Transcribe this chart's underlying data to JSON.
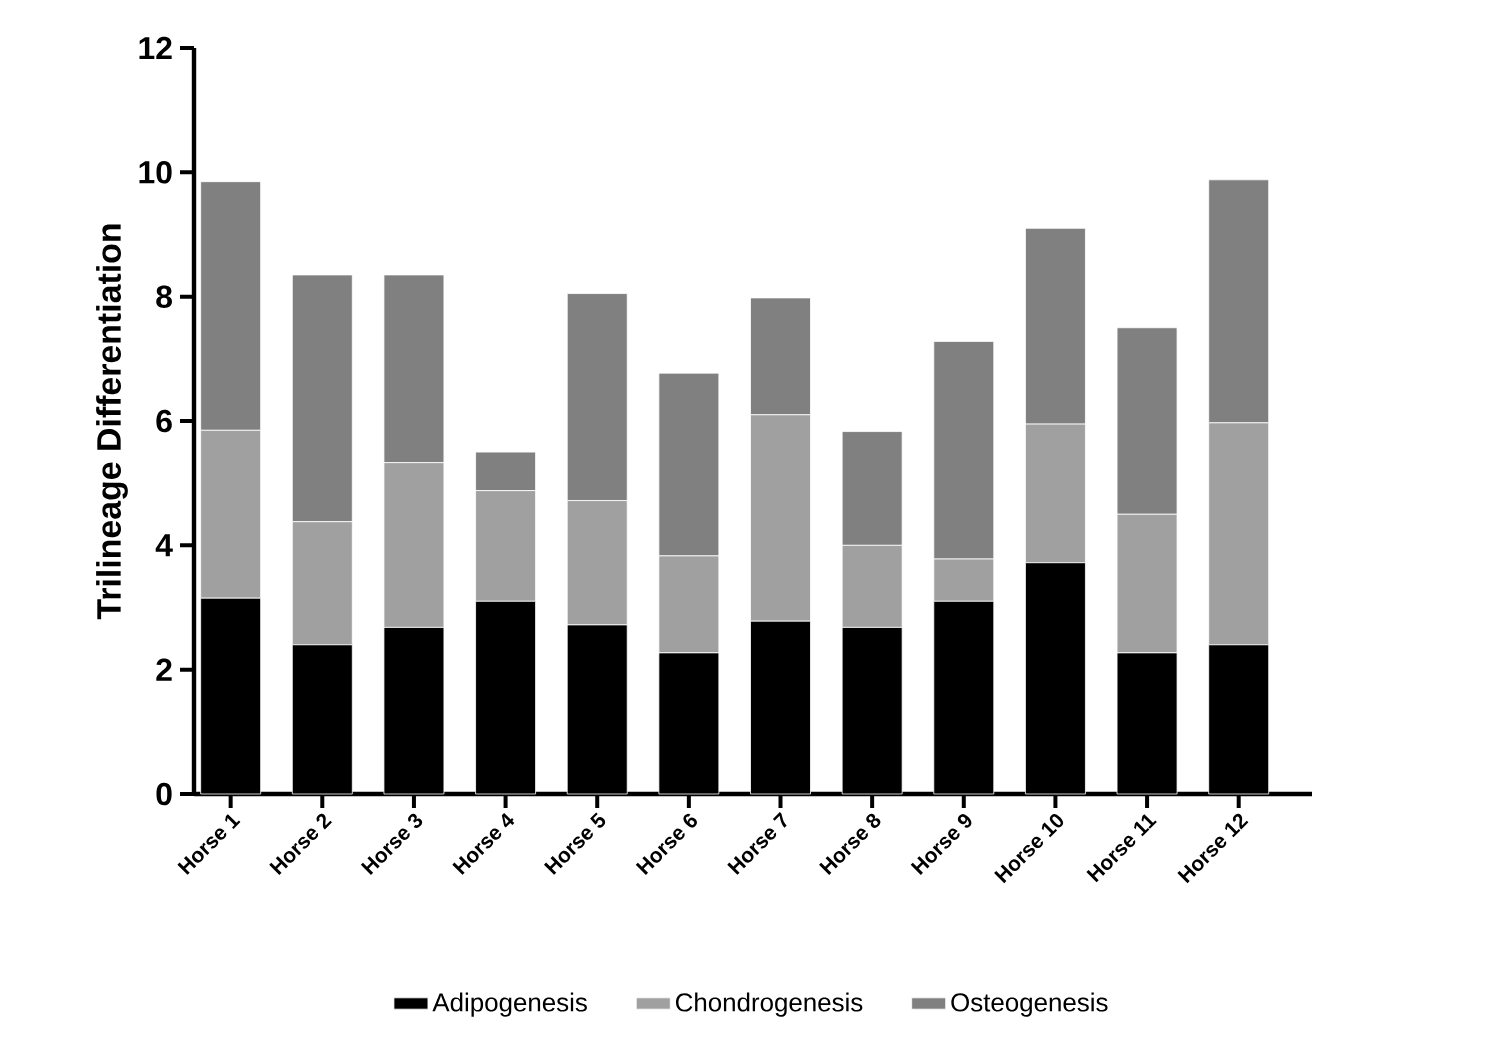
{
  "chart_data": {
    "type": "bar",
    "stacked": true,
    "ylabel": "Trilineage Differentiation",
    "categories": [
      "Horse 1",
      "Horse 2",
      "Horse 3",
      "Horse 4",
      "Horse 5",
      "Horse 6",
      "Horse 7",
      "Horse 8",
      "Horse 9",
      "Horse 10",
      "Horse 11",
      "Horse 12"
    ],
    "series": [
      {
        "name": "Adipogenesis",
        "color": "#000000",
        "values": [
          3.15,
          2.4,
          2.68,
          3.1,
          2.72,
          2.27,
          2.78,
          2.68,
          3.1,
          3.72,
          2.27,
          2.4
        ]
      },
      {
        "name": "Chondrogenesis",
        "color": "#a0a0a0",
        "values": [
          2.7,
          1.98,
          2.65,
          1.78,
          2.0,
          1.56,
          3.32,
          1.32,
          0.68,
          2.23,
          2.23,
          3.57
        ]
      },
      {
        "name": "Osteogenesis",
        "color": "#808080",
        "values": [
          4.0,
          3.97,
          3.02,
          0.62,
          3.33,
          2.94,
          1.88,
          1.83,
          3.5,
          3.15,
          3.0,
          3.91
        ]
      }
    ],
    "ylim": [
      0,
      12
    ],
    "yticks": [
      0,
      2,
      4,
      6,
      8,
      10,
      12
    ],
    "legend": "bottom"
  }
}
